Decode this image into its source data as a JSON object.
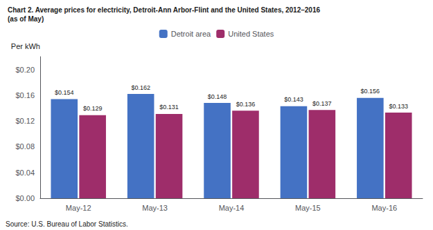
{
  "chart_data": {
    "type": "bar",
    "title": "Chart 2. Average prices for electricity, Detroit-Ann Arbor-Flint and the United States, 2012–2016",
    "subtitle": "(as of May)",
    "ylabel": "Per kWh",
    "annotations": [
      "Source: U.S. Bureau of Labor Statistics."
    ],
    "categories": [
      "May-12",
      "May-13",
      "May-14",
      "May-15",
      "May-16"
    ],
    "series": [
      {
        "name": "Detroit area",
        "color": "#4472C4",
        "values": [
          0.154,
          0.162,
          0.148,
          0.143,
          0.156
        ],
        "value_labels": [
          "$0.154",
          "$0.162",
          "$0.148",
          "$0.143",
          "$0.156"
        ]
      },
      {
        "name": "United States",
        "color": "#9E2D6A",
        "values": [
          0.129,
          0.131,
          0.136,
          0.137,
          0.133
        ],
        "value_labels": [
          "$0.129",
          "$0.131",
          "$0.136",
          "$0.137",
          "$0.133"
        ]
      }
    ],
    "ylim": [
      0.0,
      0.22
    ],
    "yticks": [
      {
        "value": 0.0,
        "label": "$0.00"
      },
      {
        "value": 0.04,
        "label": "$0.04"
      },
      {
        "value": 0.08,
        "label": "$0.08"
      },
      {
        "value": 0.12,
        "label": "$0.12"
      },
      {
        "value": 0.16,
        "label": "$0.16"
      },
      {
        "value": 0.2,
        "label": "$0.20"
      }
    ],
    "grid": false,
    "legend": "top",
    "data_labels": true
  }
}
